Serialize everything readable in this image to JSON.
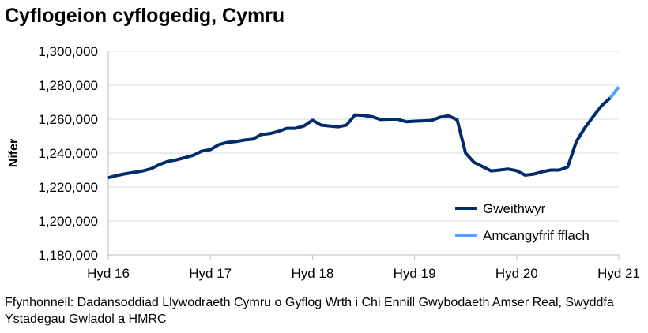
{
  "title": "Cyflogeion cyflogedig, Cymru",
  "source": "Ffynhonnell: Dadansoddiad Llywodraeth Cymru o Gyflog Wrth i Chi Ennill Gwybodaeth Amser Real, Swyddfa Ystadegau Gwladol a HMRC",
  "chart_data": {
    "type": "line",
    "ylabel": "Nifer",
    "xlabel": "",
    "ylim": [
      1180000,
      1300000
    ],
    "yticks": [
      1180000,
      1200000,
      1220000,
      1240000,
      1260000,
      1280000,
      1300000
    ],
    "ytick_labels": [
      "1,180,000",
      "1,200,000",
      "1,220,000",
      "1,240,000",
      "1,260,000",
      "1,280,000",
      "1,300,000"
    ],
    "xtick_labels": [
      "Hyd 16",
      "Hyd 17",
      "Hyd 18",
      "Hyd 19",
      "Hyd 20",
      "Hyd 21"
    ],
    "x_start": "2016-10",
    "x_end": "2021-10",
    "frequency": "monthly",
    "grid": "horizontal",
    "legend_placement": "bottom-right",
    "series": [
      {
        "name": "Gweithwyr",
        "color": "#002d6a",
        "start": "2016-10",
        "values": [
          1225500,
          1226800,
          1227800,
          1228600,
          1229400,
          1230700,
          1233200,
          1235100,
          1236000,
          1237300,
          1238700,
          1241200,
          1242000,
          1245000,
          1246300,
          1246800,
          1247700,
          1248200,
          1251000,
          1251500,
          1252800,
          1254600,
          1254600,
          1256000,
          1259400,
          1256500,
          1256000,
          1255500,
          1256500,
          1262500,
          1262200,
          1261500,
          1259800,
          1260000,
          1260000,
          1258500,
          1258800,
          1259000,
          1259300,
          1261200,
          1262000,
          1259700,
          1240000,
          1234500,
          1232000,
          1229500,
          1230000,
          1230600,
          1229600,
          1227000,
          1227600,
          1229000,
          1230000,
          1230000,
          1231800,
          1246600,
          1254800,
          1261600,
          1268000,
          1272500
        ]
      },
      {
        "name": "Amcangyfrif fflach",
        "color": "#4da3ff",
        "start": "2021-09",
        "values": [
          1272500,
          1279000
        ]
      }
    ]
  }
}
